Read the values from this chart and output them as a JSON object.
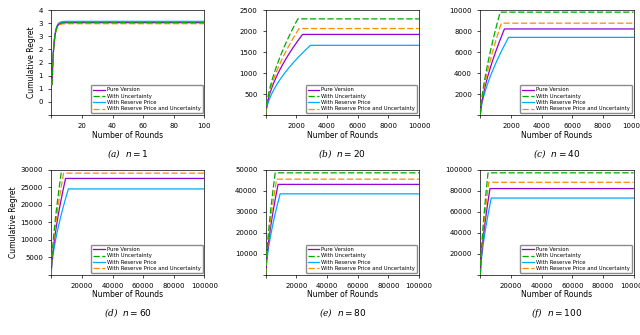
{
  "subplots": [
    {
      "label": "(a)  $n = 1$",
      "n": 1,
      "T": 100,
      "xlim": [
        0,
        100
      ],
      "ylim": [
        0,
        4
      ],
      "yticks": [
        0,
        0.5,
        1.0,
        1.5,
        2.0,
        2.5,
        3.0,
        3.5,
        4.0
      ],
      "xticks": [
        0,
        20,
        40,
        60,
        80,
        100
      ],
      "curves": {
        "pure": {
          "coeff": 3.5,
          "power": 0.03,
          "scale": 1.0,
          "sat": 3.52
        },
        "unc": {
          "coeff": 3.5,
          "power": 0.03,
          "scale": 1.0,
          "sat": 3.52
        },
        "res": {
          "coeff": 3.55,
          "power": 0.03,
          "scale": 1.0,
          "sat": 3.57
        },
        "ru": {
          "coeff": 3.45,
          "power": 0.03,
          "scale": 1.0,
          "sat": 3.48
        }
      }
    },
    {
      "label": "(b)  $n = 20$",
      "n": 20,
      "T": 10000,
      "xlim": [
        0,
        10000
      ],
      "ylim": [
        0,
        2500
      ],
      "yticks": [
        0,
        500,
        1000,
        1500,
        2000,
        2500
      ],
      "xticks": [
        0,
        2000,
        4000,
        6000,
        8000,
        10000
      ],
      "curves": {
        "pure": {
          "coeff": 18.0,
          "power": 0.6,
          "scale": 1.0,
          "sat": 1920
        },
        "unc": {
          "coeff": 20.0,
          "power": 0.62,
          "scale": 1.0,
          "sat": 2290
        },
        "res": {
          "coeff": 15.0,
          "power": 0.59,
          "scale": 1.0,
          "sat": 1660
        },
        "ru": {
          "coeff": 19.0,
          "power": 0.61,
          "scale": 1.0,
          "sat": 2060
        }
      }
    },
    {
      "label": "(c)  $n = 40$",
      "n": 40,
      "T": 10000,
      "xlim": [
        0,
        10000
      ],
      "ylim": [
        0,
        10000
      ],
      "yticks": [
        0,
        2000,
        4000,
        6000,
        8000,
        10000
      ],
      "xticks": [
        0,
        2000,
        4000,
        6000,
        8000,
        10000
      ],
      "curves": {
        "pure": {
          "coeff": 55.0,
          "power": 0.68,
          "scale": 1.0,
          "sat": 8200
        },
        "unc": {
          "coeff": 65.0,
          "power": 0.7,
          "scale": 1.0,
          "sat": 9800
        },
        "res": {
          "coeff": 48.0,
          "power": 0.67,
          "scale": 1.0,
          "sat": 7400
        },
        "ru": {
          "coeff": 60.0,
          "power": 0.69,
          "scale": 1.0,
          "sat": 8750
        }
      }
    },
    {
      "label": "(d)  $n = 60$",
      "n": 60,
      "T": 100000,
      "xlim": [
        0,
        100000
      ],
      "ylim": [
        0,
        30000
      ],
      "yticks": [
        0,
        5000,
        10000,
        15000,
        20000,
        25000,
        30000
      ],
      "xticks": [
        0,
        20000,
        40000,
        60000,
        80000,
        100000
      ],
      "curves": {
        "pure": {
          "coeff": 60.0,
          "power": 0.67,
          "scale": 1.0,
          "sat": 27500
        },
        "unc": {
          "coeff": 68.0,
          "power": 0.69,
          "scale": 1.0,
          "sat": 30500
        },
        "res": {
          "coeff": 52.0,
          "power": 0.66,
          "scale": 1.0,
          "sat": 24500
        },
        "ru": {
          "coeff": 64.0,
          "power": 0.68,
          "scale": 1.0,
          "sat": 29000
        }
      }
    },
    {
      "label": "(e)  $n = 80$",
      "n": 80,
      "T": 100000,
      "xlim": [
        0,
        100000
      ],
      "ylim": [
        0,
        50000
      ],
      "yticks": [
        0,
        10000,
        20000,
        30000,
        40000,
        50000
      ],
      "xticks": [
        0,
        20000,
        40000,
        60000,
        80000,
        100000
      ],
      "curves": {
        "pure": {
          "coeff": 95.0,
          "power": 0.68,
          "scale": 1.0,
          "sat": 43000
        },
        "unc": {
          "coeff": 108.0,
          "power": 0.7,
          "scale": 1.0,
          "sat": 48500
        },
        "res": {
          "coeff": 84.0,
          "power": 0.67,
          "scale": 1.0,
          "sat": 38500
        },
        "ru": {
          "coeff": 100.0,
          "power": 0.69,
          "scale": 1.0,
          "sat": 45500
        }
      }
    },
    {
      "label": "(f)  $n = 100$",
      "n": 100,
      "T": 100000,
      "xlim": [
        0,
        100000
      ],
      "ylim": [
        0,
        100000
      ],
      "yticks": [
        0,
        20000,
        40000,
        60000,
        80000,
        100000
      ],
      "xticks": [
        0,
        20000,
        40000,
        60000,
        80000,
        100000
      ],
      "curves": {
        "pure": {
          "coeff": 180.0,
          "power": 0.7,
          "scale": 1.0,
          "sat": 82000
        },
        "unc": {
          "coeff": 210.0,
          "power": 0.72,
          "scale": 1.0,
          "sat": 97000
        },
        "res": {
          "coeff": 160.0,
          "power": 0.69,
          "scale": 1.0,
          "sat": 73000
        },
        "ru": {
          "coeff": 195.0,
          "power": 0.71,
          "scale": 1.0,
          "sat": 88000
        }
      }
    }
  ],
  "colors": {
    "pure": "#9400D3",
    "unc": "#00AA00",
    "res": "#00AAFF",
    "ru": "#FF8C00"
  },
  "legend_labels": [
    "Pure Version",
    "With Uncertainty",
    "With Reserve Price",
    "With Reserve Price and Uncertainty"
  ],
  "ylabel": "Cumulative Regret",
  "xlabel": "Number of Rounds"
}
